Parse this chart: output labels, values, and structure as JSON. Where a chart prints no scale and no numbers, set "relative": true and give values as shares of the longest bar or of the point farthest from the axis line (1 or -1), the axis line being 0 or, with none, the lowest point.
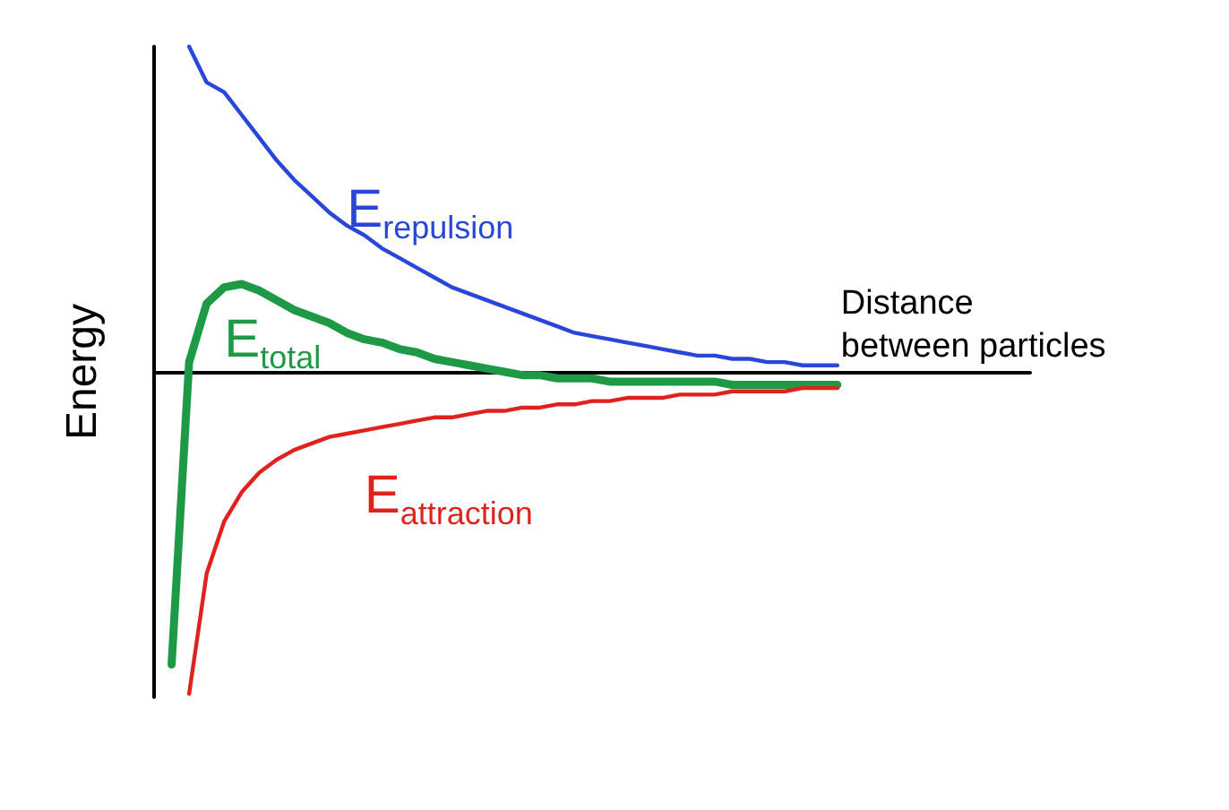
{
  "chart_data": {
    "type": "line",
    "relative": true,
    "xlabel": "Distance\nbetween particles",
    "ylabel": "Energy",
    "marker": "none",
    "line_style": "solid",
    "categories": [
      null,
      null,
      null,
      null,
      null,
      null,
      null,
      null,
      null,
      null,
      null,
      null,
      null,
      null,
      null,
      null,
      null,
      null,
      null,
      null,
      null,
      null,
      null,
      null,
      null,
      null,
      null,
      null,
      null,
      null,
      null,
      null,
      null,
      null,
      null,
      null,
      null,
      null,
      null,
      null,
      null,
      null,
      null,
      null,
      null,
      null,
      null,
      null,
      null,
      null,
      null
    ],
    "series": [
      {
        "name": "E$_{repulsion}$",
        "color": "#2846d8",
        "values": [
          null,
          null,
          1.0,
          0.89,
          0.86,
          0.79,
          0.72,
          0.65,
          0.59,
          0.54,
          0.49,
          0.45,
          0.42,
          0.38,
          0.35,
          0.32,
          0.29,
          0.26,
          0.24,
          0.22,
          0.2,
          0.18,
          0.16,
          0.14,
          0.12,
          0.11,
          0.1,
          0.09,
          0.08,
          0.07,
          0.06,
          0.05,
          0.05,
          0.04,
          0.04,
          0.03,
          0.03,
          0.02,
          0.02,
          0.02,
          null,
          null,
          null,
          null,
          null,
          null,
          null,
          null,
          null,
          null,
          null
        ]
      },
      {
        "name": "E$_{total}$",
        "color": "#1e9a46",
        "values": [
          null,
          -0.9,
          0.03,
          0.21,
          0.26,
          0.27,
          0.25,
          0.22,
          0.19,
          0.17,
          0.15,
          0.12,
          0.1,
          0.09,
          0.07,
          0.06,
          0.04,
          0.03,
          0.02,
          0.01,
          0,
          -0.01,
          -0.01,
          -0.02,
          -0.02,
          -0.02,
          -0.03,
          -0.03,
          -0.03,
          -0.03,
          -0.03,
          -0.03,
          -0.03,
          -0.04,
          -0.04,
          -0.04,
          -0.04,
          -0.04,
          -0.04,
          -0.04,
          null,
          null,
          null,
          null,
          null,
          null,
          null,
          null,
          null,
          null,
          null
        ]
      },
      {
        "name": "E$_{attraction}$",
        "color": "#e0221f",
        "values": [
          null,
          null,
          -0.99,
          -0.62,
          -0.46,
          -0.37,
          -0.31,
          -0.27,
          -0.24,
          -0.22,
          -0.2,
          -0.19,
          -0.18,
          -0.17,
          -0.16,
          -0.15,
          -0.14,
          -0.14,
          -0.13,
          -0.12,
          -0.12,
          -0.11,
          -0.11,
          -0.1,
          -0.1,
          -0.09,
          -0.09,
          -0.08,
          -0.08,
          -0.08,
          -0.07,
          -0.07,
          -0.07,
          -0.06,
          -0.06,
          -0.06,
          -0.06,
          -0.05,
          -0.05,
          -0.05,
          null,
          null,
          null,
          null,
          null,
          null,
          null,
          null,
          null,
          null,
          null
        ]
      }
    ]
  }
}
